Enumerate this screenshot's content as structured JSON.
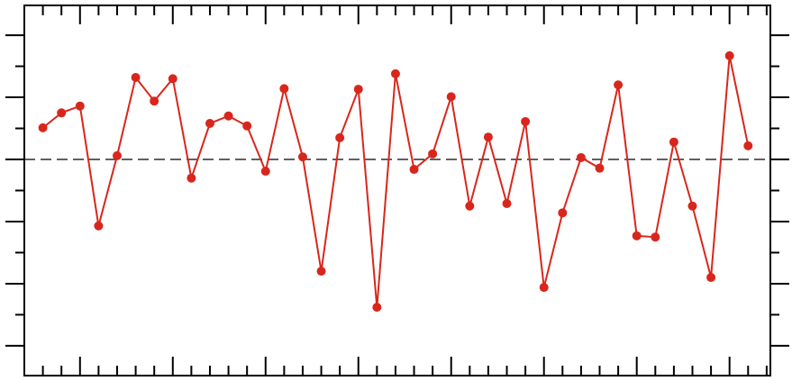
{
  "chart_data": {
    "type": "line",
    "x": [
      3,
      4,
      5,
      6,
      7,
      8,
      9,
      10,
      11,
      12,
      13,
      14,
      15,
      16,
      17,
      18,
      19,
      20,
      21,
      22,
      23,
      24,
      25,
      26,
      27,
      28,
      29,
      30,
      31,
      32,
      33,
      34,
      35,
      36,
      37,
      38,
      39,
      40,
      41
    ],
    "series": [
      {
        "color": "#d9261c",
        "values": [
          0.51,
          0.75,
          0.86,
          -1.07,
          0.06,
          1.32,
          0.94,
          1.3,
          -0.3,
          0.58,
          0.7,
          0.54,
          -0.19,
          1.14,
          0.04,
          -1.8,
          0.35,
          1.13,
          -2.38,
          1.38,
          -0.16,
          0.09,
          1.01,
          -0.75,
          0.36,
          -0.71,
          0.61,
          -2.06,
          -0.86,
          0.03,
          -0.14,
          1.2,
          -1.23,
          -1.25,
          0.28,
          -0.75,
          -1.9,
          1.67,
          0.22
        ]
      }
    ],
    "xlim": [
      2,
      42.2
    ],
    "ylim": [
      -3.48,
      2.48
    ],
    "xticks": [
      5,
      10,
      15,
      20,
      25,
      30,
      35,
      40
    ],
    "xminor_ticks": [
      3,
      4,
      6,
      7,
      8,
      9,
      11,
      12,
      13,
      14,
      16,
      17,
      18,
      19,
      21,
      22,
      23,
      24,
      26,
      27,
      28,
      29,
      31,
      32,
      33,
      34,
      36,
      37,
      38,
      39,
      41,
      42
    ],
    "yticks": [
      -3,
      -2,
      -1,
      0,
      1,
      2
    ],
    "yminor_ticks": [
      -2.5,
      -1.5,
      -0.5,
      0.5,
      1.5
    ],
    "hline": 0,
    "markers": true
  }
}
